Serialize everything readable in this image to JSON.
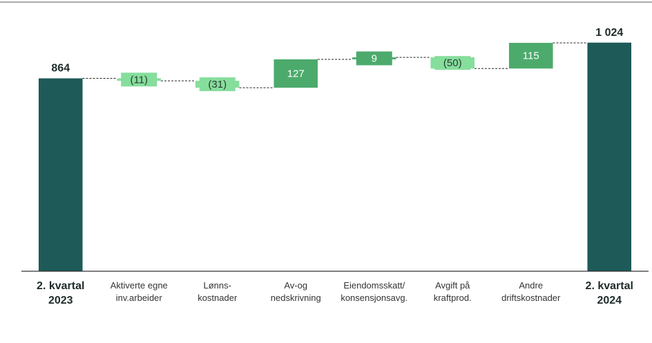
{
  "chart_data": {
    "type": "waterfall",
    "categories": [
      [
        "2. kvartal",
        "2023"
      ],
      [
        "Aktiverte egne",
        "inv.arbeider"
      ],
      [
        "Lønns-",
        "kostnader"
      ],
      [
        "Av-og",
        "nedskrivning"
      ],
      [
        "Eiendomsskatt/",
        "konsensjonsavg."
      ],
      [
        "Avgift på",
        "kraftprod."
      ],
      [
        "Andre",
        "driftskostnader"
      ],
      [
        "2. kvartal",
        "2024"
      ]
    ],
    "values": [
      864,
      -11,
      -31,
      127,
      9,
      -50,
      115,
      1024
    ],
    "value_labels": [
      "864",
      "(11)",
      "(31)",
      "127",
      "9",
      "(50)",
      "115",
      "1 024"
    ],
    "colors": [
      "#1d5a58",
      "#86de9c",
      "#86de9c",
      "#4caa6c",
      "#4caa6c",
      "#86de9c",
      "#4caa6c",
      "#1d5a58"
    ],
    "ylim": [
      0,
      1150
    ]
  }
}
